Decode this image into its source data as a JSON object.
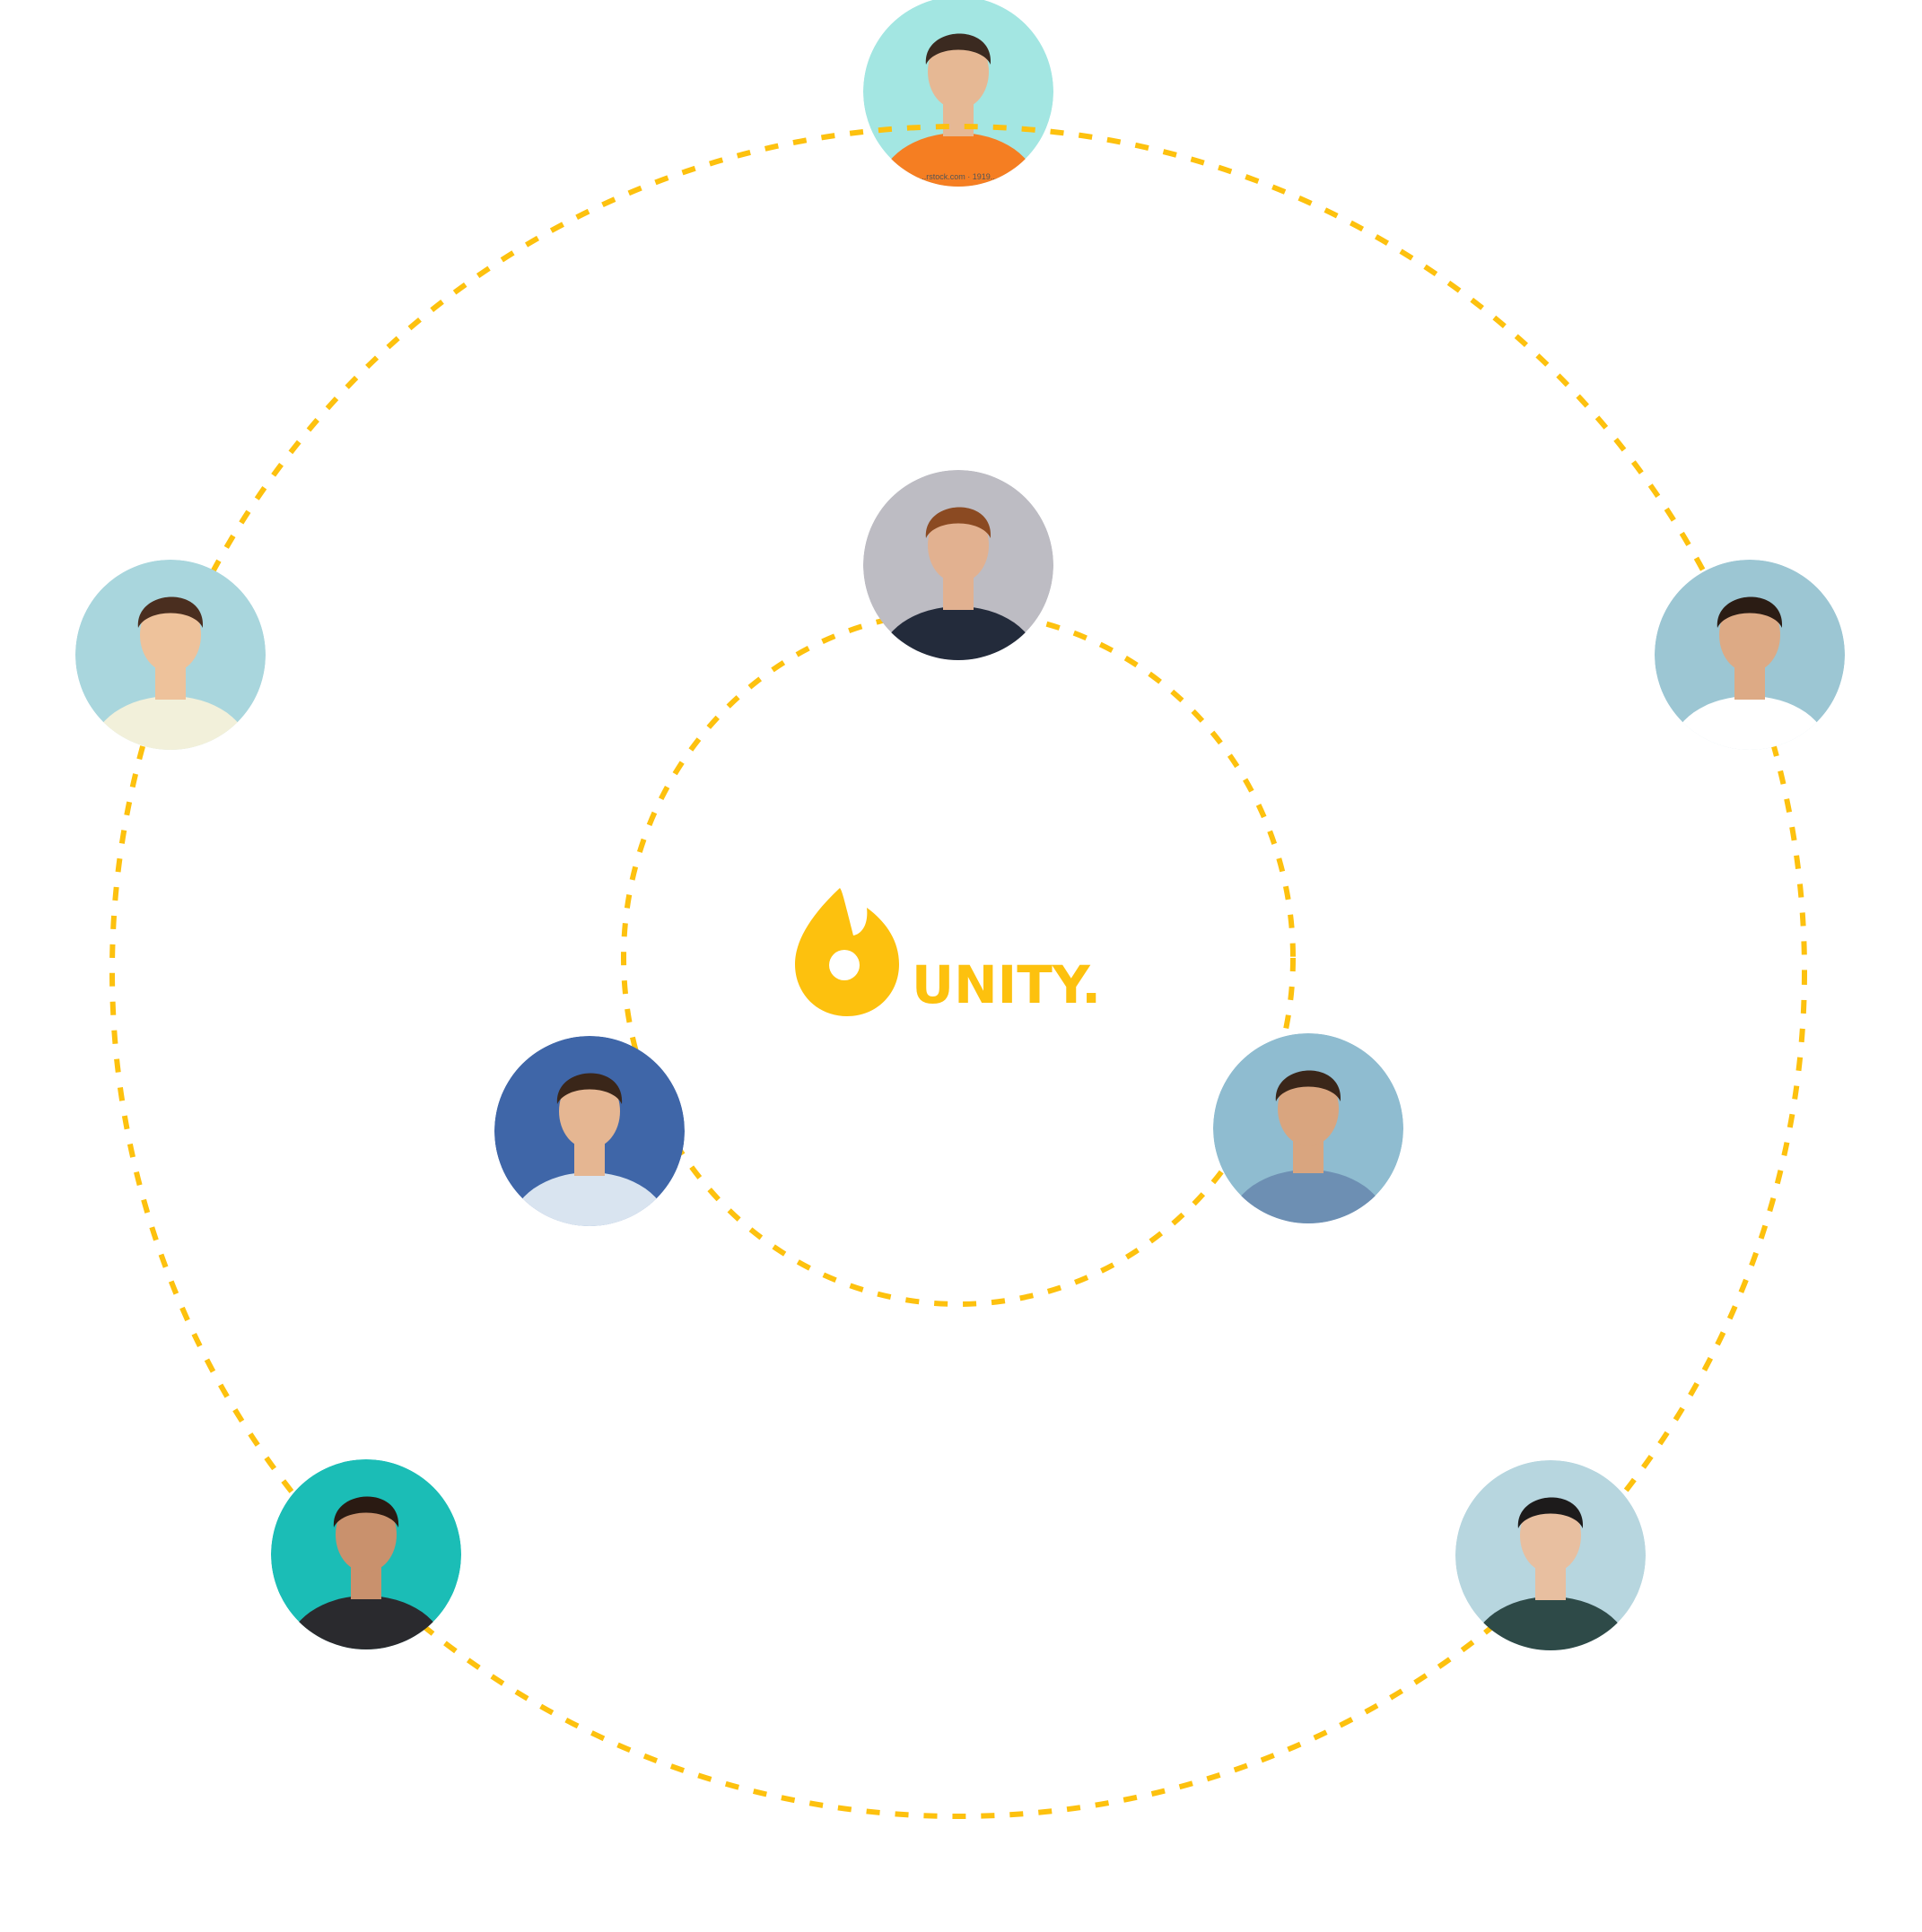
{
  "brand": {
    "name": "UNITY.",
    "accent": "#FDC10E",
    "icon": "flame-icon"
  },
  "orbits": {
    "line_color": "#FDC10E",
    "style": "dashed"
  },
  "avatars": [
    {
      "id": "top",
      "bg": "#A3E6E2",
      "skin": "#E6B894",
      "shirt": "#F57E22",
      "hair": "#3B2A20",
      "watermark": "...rstock.com · 1919..."
    },
    {
      "id": "left",
      "bg": "#A9D6DD",
      "skin": "#EEC29B",
      "shirt": "#F2F0DA",
      "hair": "#4A2E1F"
    },
    {
      "id": "right",
      "bg": "#9CC6D3",
      "skin": "#DDAA85",
      "shirt": "#FFFFFF",
      "hair": "#2B1C14"
    },
    {
      "id": "inner-top",
      "bg": "#BDBCC3",
      "skin": "#E2B190",
      "shirt": "#232B3B",
      "hair": "#8B4A22"
    },
    {
      "id": "inner-left",
      "bg": "#3F66A8",
      "skin": "#E5B692",
      "shirt": "#D9E4F0",
      "hair": "#3A2619"
    },
    {
      "id": "inner-right",
      "bg": "#8FBCD0",
      "skin": "#D9A57F",
      "shirt": "#6D8FB3",
      "hair": "#3A2619"
    },
    {
      "id": "bottom-left",
      "bg": "#1BBDB6",
      "skin": "#C9916D",
      "shirt": "#2A2A2E",
      "hair": "#2A1A12"
    },
    {
      "id": "bottom-right",
      "bg": "#B7D6DF",
      "skin": "#E8BFA0",
      "shirt": "#2E4A48",
      "hair": "#1D1B1B"
    }
  ]
}
